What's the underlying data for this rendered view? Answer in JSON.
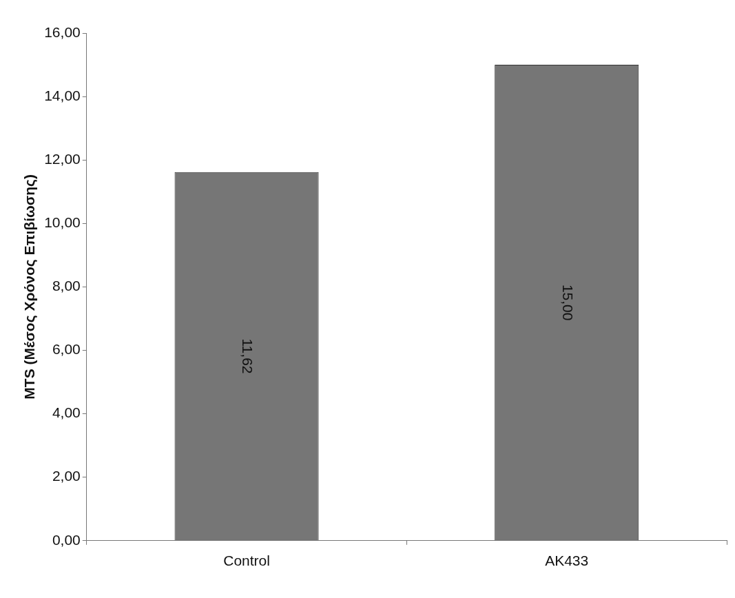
{
  "chart_data": {
    "type": "bar",
    "ylabel": "MTS (Μέσος Χρόνος Επιβίωσης)",
    "categories": [
      "Control",
      "AK433"
    ],
    "values": [
      11.62,
      15.0
    ],
    "value_labels": [
      "11,62",
      "15,00"
    ],
    "color": "#767676",
    "ylim": [
      0,
      16
    ],
    "yticks": [
      {
        "value": 0,
        "label": "0,00"
      },
      {
        "value": 2,
        "label": "2,00"
      },
      {
        "value": 4,
        "label": "4,00"
      },
      {
        "value": 6,
        "label": "6,00"
      },
      {
        "value": 8,
        "label": "8,00"
      },
      {
        "value": 10,
        "label": "10,00"
      },
      {
        "value": 12,
        "label": "12,00"
      },
      {
        "value": 14,
        "label": "14,00"
      },
      {
        "value": 16,
        "label": "16,00"
      }
    ],
    "grid": false,
    "legend": false
  }
}
